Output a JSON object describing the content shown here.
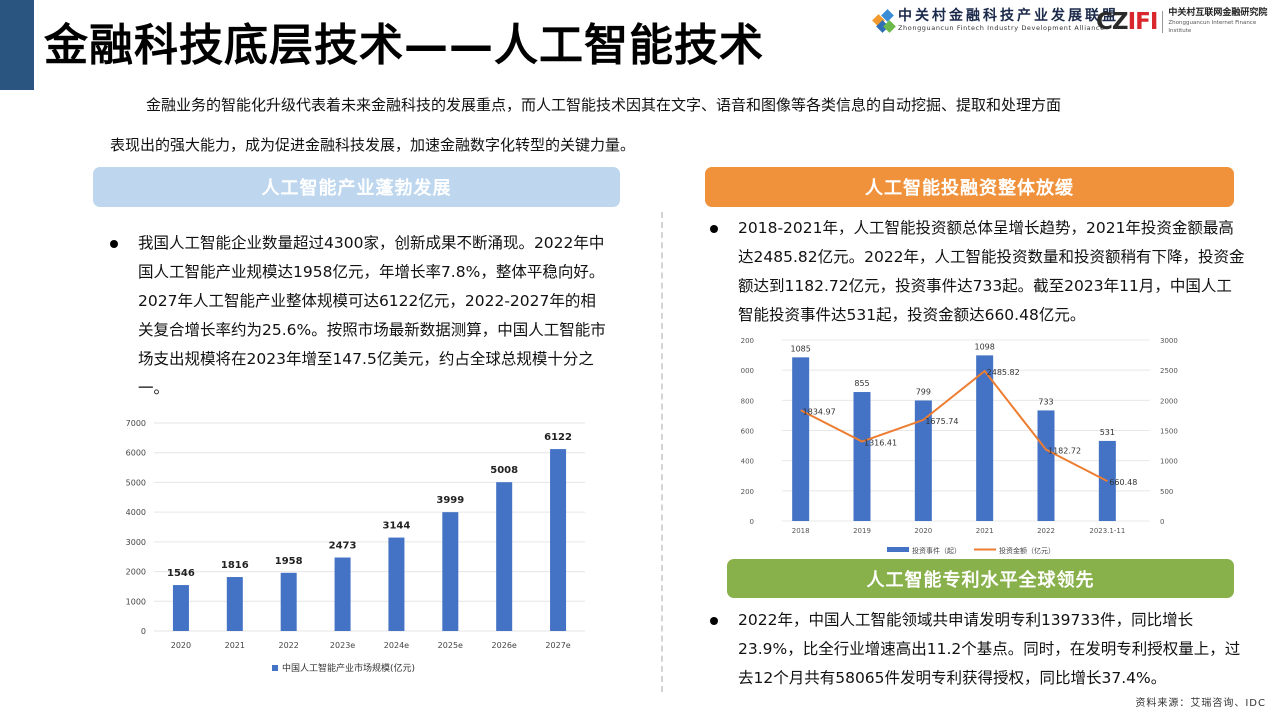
{
  "header": {
    "title": "金融科技底层技术——人工智能技术",
    "logo_fintech": {
      "name_cn": "中关村金融科技产业发展联盟",
      "name_en": "Zhongguancun Fintech Industry Development Alliance"
    },
    "logo_czifi": {
      "mark_c": "C",
      "mark_z": "Z",
      "mark_ifi": "IFI",
      "name_cn": "中关村互联网金融研究院",
      "name_en": "Zhongguancun Internet Finance Institute"
    }
  },
  "intro": {
    "line1": "金融业务的智能化升级代表着未来金融科技的发展重点，而人工智能技术因其在文字、语音和图像等各类信息的自动挖掘、提取和处理方面",
    "line2": "表现出的强大能力，成为促进金融科技发展，加速金融数字化转型的关键力量。"
  },
  "sections": {
    "left": {
      "header": "人工智能产业蓬勃发展",
      "bullet": "我国人工智能企业数量超过4300家，创新成果不断涌现。2022年中国人工智能产业规模达1958亿元，年增长率7.8%，整体平稳向好。2027年人工智能产业整体规模可达6122亿元，2022-2027年的相关复合增长率约为25.6%。按照市场最新数据测算，中国人工智能市场支出规模将在2023年增至147.5亿美元，约占全球总规模十分之一。"
    },
    "right_top": {
      "header": "人工智能投融资整体放缓",
      "bullet": "2018-2021年，人工智能投资额总体呈增长趋势，2021年投资金额最高达2485.82亿元。2022年，人工智能投资数量和投资额稍有下降，投资金额达到1182.72亿元，投资事件达733起。截至2023年11月，中国人工智能投资事件达531起，投资金额达660.48亿元。"
    },
    "right_bottom": {
      "header": "人工智能专利水平全球领先",
      "bullet": "2022年，中国人工智能领域共申请发明专利139733件，同比增长23.9%，比全行业增速高出11.2个基点。同时，在发明专利授权量上，过去12个月共有58065件发明专利获得授权，同比增长37.4%。"
    }
  },
  "source": "资料来源：艾瑞咨询、IDC",
  "colors": {
    "accent_block": "#2a5580",
    "header_blue": "#bed7ee",
    "header_orange": "#f0923c",
    "header_green": "#88b04b",
    "bar_blue": "#4472c4",
    "line_orange": "#ed7d31"
  },
  "chart_data": [
    {
      "type": "bar",
      "title": "",
      "categories": [
        "2020",
        "2021",
        "2022",
        "2023e",
        "2024e",
        "2025e",
        "2026e",
        "2027e"
      ],
      "series": [
        {
          "name": "中国人工智能产业市场规模(亿元)",
          "values": [
            1546,
            1816,
            1958,
            2473,
            3144,
            3999,
            5008,
            6122
          ]
        }
      ],
      "xlabel": "",
      "ylabel": "",
      "ylim": [
        0,
        7000
      ],
      "yticks": [
        0,
        1000,
        2000,
        3000,
        4000,
        5000,
        6000,
        7000
      ],
      "grid": true,
      "data_labels": true,
      "legend_position": "bottom"
    },
    {
      "type": "bar",
      "title": "",
      "categories": [
        "2018",
        "2019",
        "2020",
        "2021",
        "2022",
        "2023.1-11"
      ],
      "series": [
        {
          "name": "投资事件（起）",
          "type": "bar",
          "axis": "left",
          "values": [
            1085,
            855,
            799,
            1098,
            733,
            531
          ]
        },
        {
          "name": "投资金额（亿元）",
          "type": "line",
          "axis": "right",
          "values": [
            1834.97,
            1316.41,
            1675.74,
            2485.82,
            1182.72,
            660.48
          ]
        }
      ],
      "ylim_left": [
        0,
        1200
      ],
      "yticks_left": [
        0,
        200,
        400,
        600,
        800,
        1000,
        1200
      ],
      "ylim_right": [
        0,
        3000
      ],
      "yticks_right": [
        0,
        500,
        1000,
        1500,
        2000,
        2500,
        3000
      ],
      "grid": true,
      "data_labels": true,
      "legend_position": "bottom"
    }
  ]
}
